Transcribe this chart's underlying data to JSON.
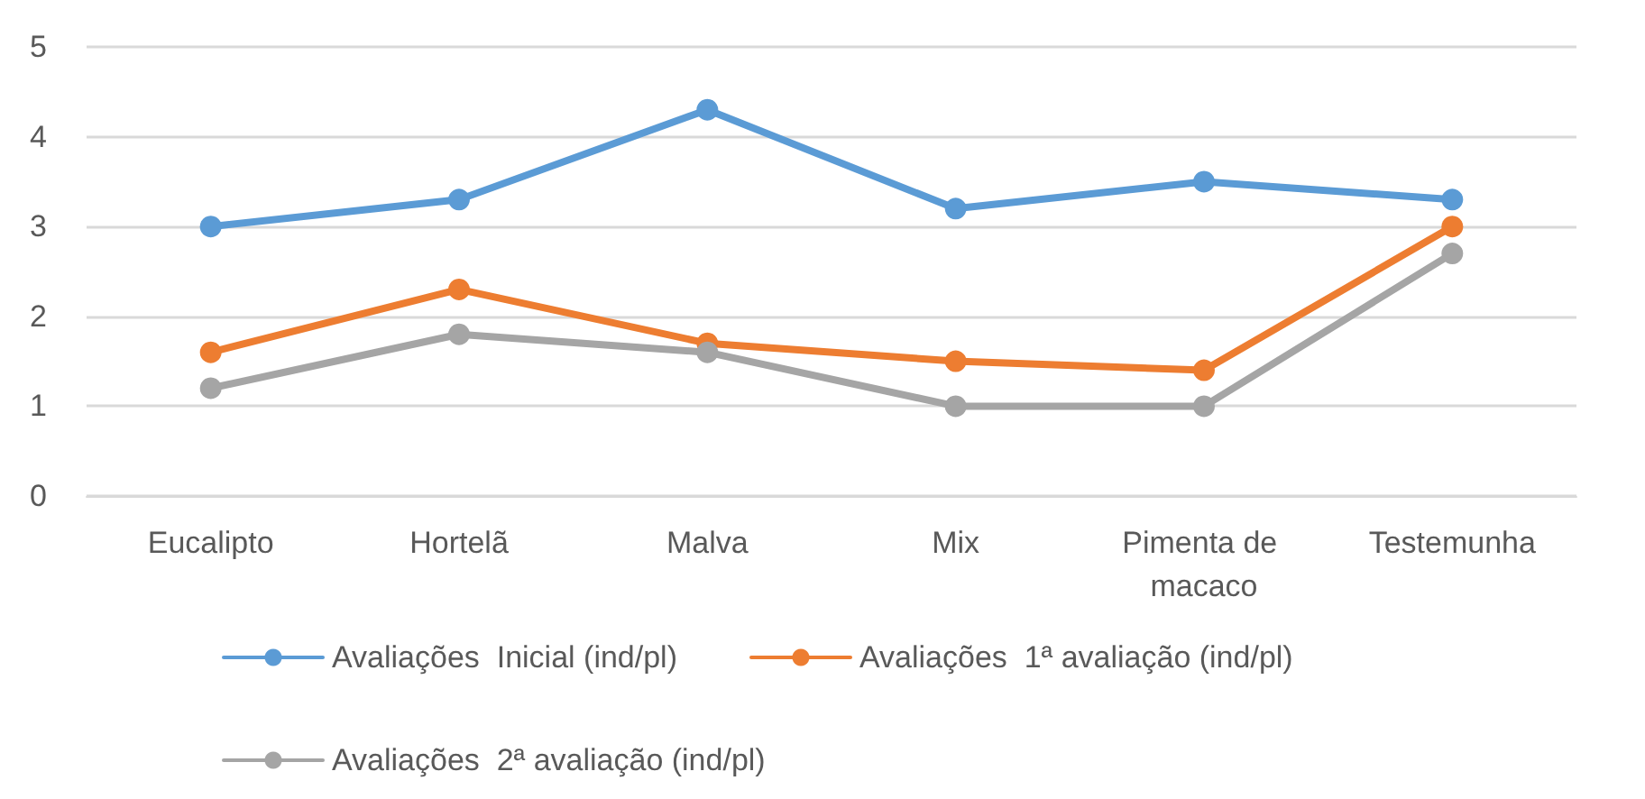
{
  "chart_data": {
    "type": "line",
    "categories": [
      "Eucalipto",
      "Hortelã",
      "Malva",
      "Mix",
      "Pimenta de macaco",
      "Testemunha"
    ],
    "series": [
      {
        "name": "Avaliações  Inicial (ind/pl)",
        "color": "#5b9bd5",
        "values": [
          3.0,
          3.3,
          4.3,
          3.2,
          3.5,
          3.3
        ]
      },
      {
        "name": "Avaliações  1ª avaliação (ind/pl)",
        "color": "#ed7d31",
        "values": [
          1.6,
          2.3,
          1.7,
          1.5,
          1.4,
          3.0
        ]
      },
      {
        "name": "Avaliações  2ª avaliação (ind/pl)",
        "color": "#a5a5a5",
        "values": [
          1.2,
          1.8,
          1.6,
          1.0,
          1.0,
          2.7
        ]
      }
    ],
    "ylim": [
      0,
      5
    ],
    "yticks": [
      0,
      1,
      2,
      3,
      4,
      5
    ],
    "grid": "y",
    "legend": "bottom",
    "marker": "circle",
    "line_style": "solid"
  }
}
